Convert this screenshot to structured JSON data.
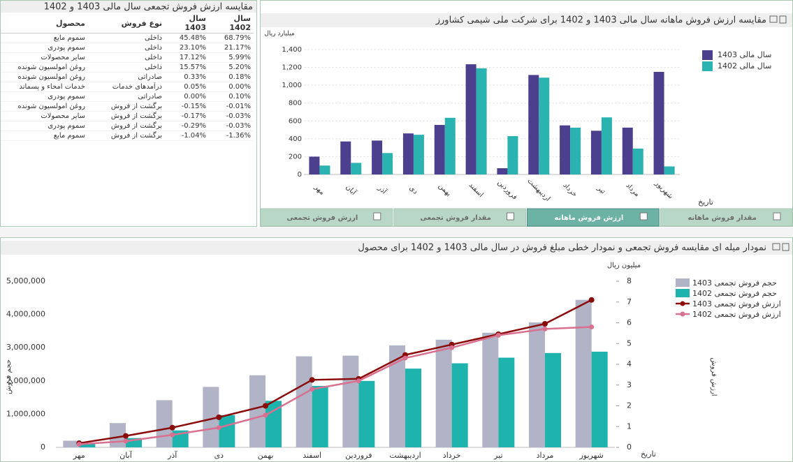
{
  "table": {
    "title": "مقایسه ارزش فروش تجمعی سال مالی 1403 و 1402",
    "header": [
      "محصول",
      "نوع فروش",
      "سال 1403",
      "سال 1402"
    ],
    "rows": [
      [
        "سموم مایع",
        "داخلی",
        "45.48%",
        "68.79%"
      ],
      [
        "سموم پودری",
        "داخلی",
        "23.10%",
        "21.17%"
      ],
      [
        "سایر محصولات",
        "داخلی",
        "17.12%",
        "5.99%"
      ],
      [
        "روغن امولسیون شونده",
        "داخلی",
        "15.57%",
        "5.20%"
      ],
      [
        "روغن امولسیون شونده",
        "صادراتی",
        "0.33%",
        "0.18%"
      ],
      [
        "خدمات امحاء و پسماند",
        "درآمدهای خدمات",
        "0.05%",
        "0.00%"
      ],
      [
        "سموم پودری",
        "صادراتی",
        "0.00%",
        "0.10%"
      ],
      [
        "روغن امولسیون شونده",
        "برگشت از فروش",
        "-0.15%",
        "-0.01%"
      ],
      [
        "سایر محصولات",
        "برگشت از فروش",
        "-0.17%",
        "-0.03%"
      ],
      [
        "سموم پودری",
        "برگشت از فروش",
        "-0.29%",
        "-0.03%"
      ],
      [
        "سموم مایع",
        "برگشت از فروش",
        "-1.04%",
        "-1.36%"
      ]
    ]
  },
  "tabs": [
    "مقدار فروش ماهانه",
    "ارزش فروش ماهانه",
    "مقدار فروش تجمعی",
    "ارزش فروش تجمعی"
  ],
  "active_tab": 1,
  "chart_data": [
    {
      "type": "bar",
      "title": "مقایسه ارزش فروش ماهانه سال مالی 1403 و 1402 برای شرکت ملی شیمی کشاورز",
      "y_label": "میلیارد ریال",
      "x_label": "تاریخ",
      "categories": [
        "مهر",
        "آبان",
        "آذر",
        "دی",
        "بهمن",
        "اسفند",
        "فروردین",
        "اردیبهشت",
        "خرداد",
        "تیر",
        "مرداد",
        "شهریور"
      ],
      "series": [
        {
          "name": "سال مالی 1403",
          "color": "#4b3f8e",
          "values": [
            200,
            370,
            380,
            460,
            555,
            1235,
            70,
            1115,
            550,
            490,
            525,
            1150
          ]
        },
        {
          "name": "سال مالی 1402",
          "color": "#2ab3b1",
          "values": [
            100,
            130,
            240,
            445,
            635,
            1190,
            430,
            1085,
            525,
            640,
            290,
            90
          ]
        }
      ],
      "ylim": [
        0,
        1400
      ],
      "yticks": [
        0,
        200,
        400,
        600,
        800,
        {
          "value": 1000,
          "label": "1,000"
        },
        {
          "value": 1200,
          "label": "1,200"
        },
        {
          "value": 1400,
          "label": "1,400"
        }
      ],
      "grid": true
    },
    {
      "type": "combo",
      "title": "نمودار میله ای مقایسه فروش تجمعی و نمودار خطی مبلغ فروش در سال مالی 1403 و 1402 برای محصول",
      "y_label": "حجم فروش",
      "y2_label": "ارزش فروش",
      "y2_unit": "میلیون ریال",
      "x_label": "تاریخ",
      "categories": [
        "مهر",
        "آبان",
        "آذر",
        "دی",
        "بهمن",
        "اسفند",
        "فروردین",
        "اردیبهشت",
        "خرداد",
        "تیر",
        "مرداد",
        "شهریور"
      ],
      "series": [
        {
          "name": "حجم فروش تجمعی 1403",
          "type": "bar",
          "color": "#b1b3c7",
          "values": [
            200000,
            730000,
            1420000,
            1820000,
            2170000,
            2740000,
            2760000,
            3070000,
            3240000,
            3450000,
            3760000,
            4440000
          ]
        },
        {
          "name": "حجم فروش تجمعی 1402",
          "type": "bar",
          "color": "#1fb3ad",
          "values": [
            100000,
            280000,
            510000,
            970000,
            1400000,
            1850000,
            2000000,
            2370000,
            2530000,
            2700000,
            2840000,
            2880000
          ]
        },
        {
          "name": "ارزش فروش تجمعی 1403",
          "type": "line",
          "axis": "y2",
          "color": "#8b0a0a",
          "values": [
            0.2,
            0.55,
            0.95,
            1.45,
            2.0,
            3.25,
            3.3,
            4.45,
            4.95,
            5.45,
            5.95,
            7.1
          ]
        },
        {
          "name": "ارزش فروش تجمعی 1402",
          "type": "line",
          "axis": "y2",
          "color": "#d9708f",
          "values": [
            0.15,
            0.3,
            0.6,
            0.95,
            1.55,
            2.8,
            3.2,
            4.3,
            4.8,
            5.4,
            5.7,
            5.8
          ]
        }
      ],
      "ylim": [
        0,
        5000000
      ],
      "yticks": [
        0,
        {
          "value": 1000000,
          "label": "1,000,000"
        },
        {
          "value": 2000000,
          "label": "2,000,000"
        },
        {
          "value": 3000000,
          "label": "3,000,000"
        },
        {
          "value": 4000000,
          "label": "4,000,000"
        },
        {
          "value": 5000000,
          "label": "5,000,000"
        }
      ],
      "y2lim": [
        0,
        8
      ],
      "y2ticks": [
        0,
        1,
        2,
        3,
        4,
        5,
        6,
        7,
        8
      ],
      "grid": false
    }
  ]
}
